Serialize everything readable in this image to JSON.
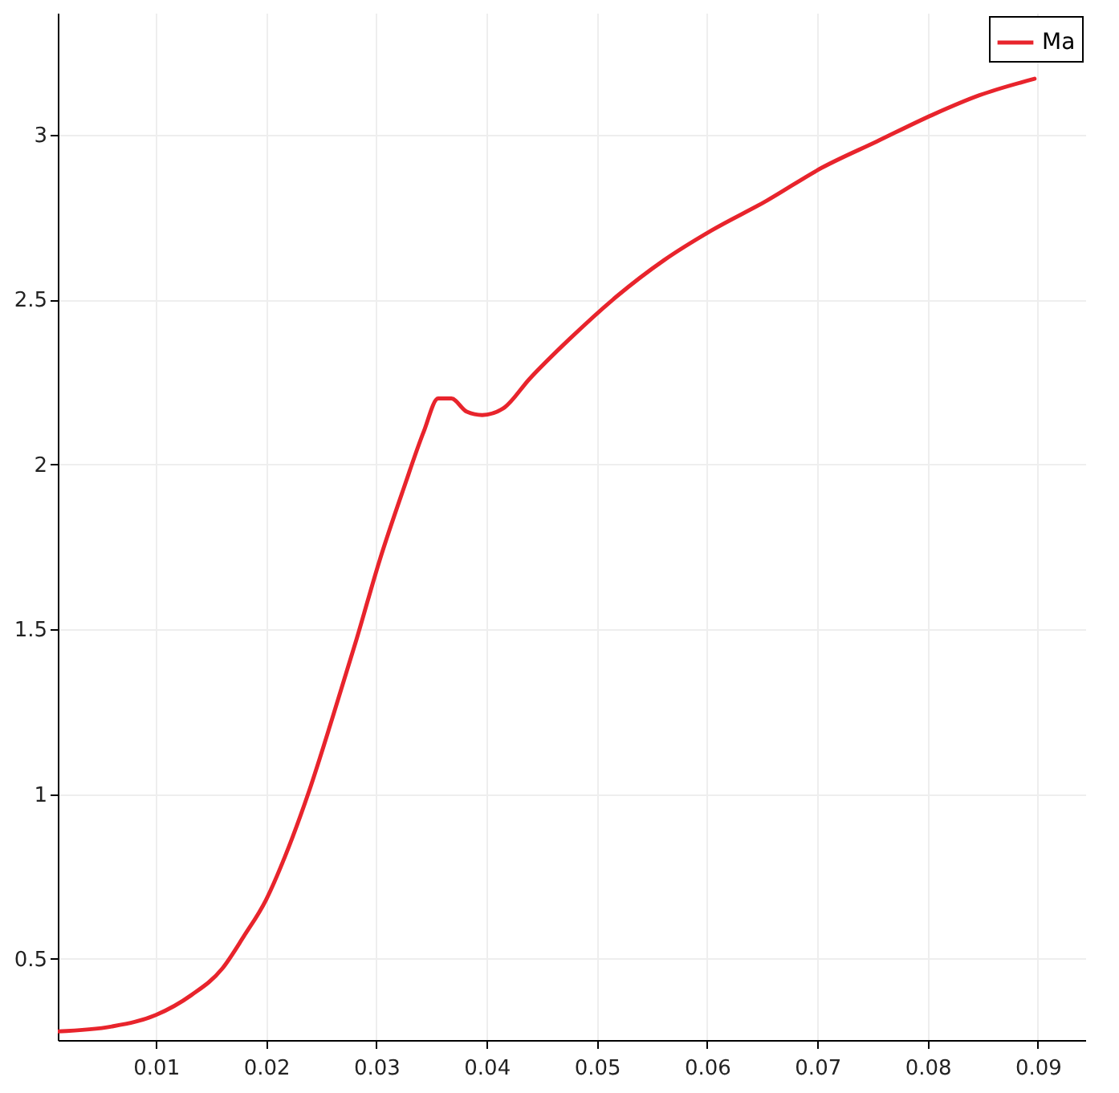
{
  "chart_data": {
    "type": "line",
    "xlim": [
      0.0011,
      0.0943
    ],
    "ylim": [
      0.254,
      3.37
    ],
    "xticks": [
      0.01,
      0.02,
      0.03,
      0.04,
      0.05,
      0.06,
      0.07,
      0.08,
      0.09
    ],
    "yticks": [
      0.5,
      1,
      1.5,
      2,
      2.5,
      3
    ],
    "grid": true,
    "legend": "top right",
    "marker": "none",
    "line_style": "solid",
    "series": [
      {
        "name": "Ma",
        "color": "#e8242c",
        "x": [
          0.0011,
          0.006,
          0.01,
          0.0132,
          0.016,
          0.018,
          0.02,
          0.0217,
          0.0239,
          0.026,
          0.0282,
          0.0303,
          0.0325,
          0.0343,
          0.0356,
          0.0368,
          0.0382,
          0.0396,
          0.0415,
          0.0439,
          0.0475,
          0.0518,
          0.0561,
          0.0604,
          0.0654,
          0.0704,
          0.0754,
          0.0804,
          0.0847,
          0.0897
        ],
        "values": [
          0.28,
          0.295,
          0.33,
          0.39,
          0.47,
          0.57,
          0.68,
          0.81,
          1.01,
          1.23,
          1.47,
          1.71,
          1.93,
          2.1,
          2.2,
          2.2,
          2.16,
          2.15,
          2.17,
          2.26,
          2.38,
          2.51,
          2.62,
          2.71,
          2.8,
          2.9,
          2.98,
          3.06,
          3.12,
          3.17
        ]
      }
    ]
  }
}
